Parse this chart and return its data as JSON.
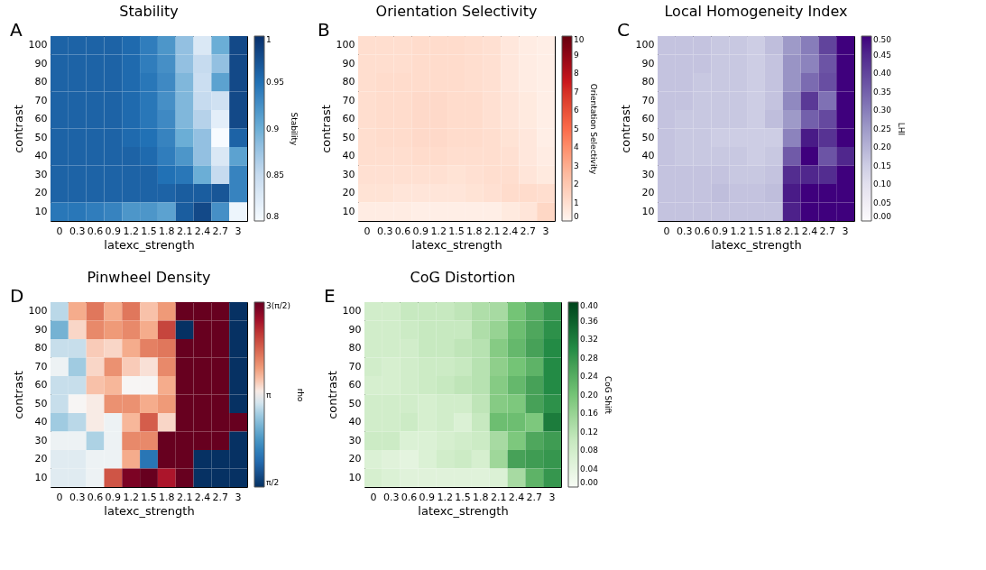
{
  "chart_data": [
    {
      "type": "heatmap",
      "title": "Stability",
      "xlabel": "latexc_strength",
      "ylabel": "contrast",
      "clabel": "Stability",
      "annotations": [
        "A"
      ],
      "categories": [
        "0",
        "0.3",
        "0.6",
        "0.9",
        "1.2",
        "1.5",
        "1.8",
        "2.1",
        "2.4",
        "2.7",
        "3"
      ],
      "y_categories": [
        "100",
        "90",
        "80",
        "70",
        "60",
        "50",
        "40",
        "30",
        "20",
        "10"
      ],
      "colors": [
        "#f7fbff",
        "#c6dbef",
        "#6baed6",
        "#2171b5",
        "#08306b"
      ],
      "clim": [
        0.8,
        1
      ],
      "cticks": [
        0.8,
        0.85,
        0.9,
        0.95,
        1
      ],
      "cells": [
        [
          0.96,
          0.96,
          0.96,
          0.96,
          0.955,
          0.94,
          0.92,
          0.88,
          0.83,
          0.9,
          0.98
        ],
        [
          0.96,
          0.96,
          0.96,
          0.96,
          0.955,
          0.94,
          0.925,
          0.88,
          0.85,
          0.88,
          0.98
        ],
        [
          0.96,
          0.96,
          0.96,
          0.96,
          0.955,
          0.945,
          0.93,
          0.89,
          0.845,
          0.91,
          0.98
        ],
        [
          0.96,
          0.96,
          0.96,
          0.96,
          0.955,
          0.945,
          0.925,
          0.89,
          0.85,
          0.84,
          0.98
        ],
        [
          0.96,
          0.96,
          0.96,
          0.96,
          0.955,
          0.945,
          0.93,
          0.89,
          0.86,
          0.82,
          0.98
        ],
        [
          0.96,
          0.96,
          0.96,
          0.96,
          0.955,
          0.95,
          0.935,
          0.9,
          0.88,
          0.8,
          0.96
        ],
        [
          0.96,
          0.96,
          0.96,
          0.96,
          0.96,
          0.955,
          0.94,
          0.92,
          0.88,
          0.83,
          0.91
        ],
        [
          0.96,
          0.96,
          0.96,
          0.96,
          0.96,
          0.96,
          0.95,
          0.945,
          0.9,
          0.85,
          0.935
        ],
        [
          0.96,
          0.96,
          0.96,
          0.96,
          0.96,
          0.96,
          0.96,
          0.965,
          0.965,
          0.97,
          0.935
        ],
        [
          0.945,
          0.945,
          0.94,
          0.935,
          0.92,
          0.92,
          0.91,
          0.965,
          0.98,
          0.925,
          0.81
        ]
      ]
    },
    {
      "type": "heatmap",
      "title": "Orientation Selectivity",
      "xlabel": "latexc_strength",
      "ylabel": "contrast",
      "clabel": "Orientation Selectivity",
      "annotations": [
        "B"
      ],
      "categories": [
        "0",
        "0.3",
        "0.6",
        "0.9",
        "1.2",
        "1.5",
        "1.8",
        "2.1",
        "2.4",
        "2.7",
        "3"
      ],
      "y_categories": [
        "100",
        "90",
        "80",
        "70",
        "60",
        "50",
        "40",
        "30",
        "20",
        "10"
      ],
      "colors": [
        "#fff5f0",
        "#fcbba1",
        "#fb6a4a",
        "#cb181d",
        "#67000d"
      ],
      "clim": [
        0,
        10
      ],
      "cticks": [
        0,
        1,
        2,
        3,
        4,
        5,
        6,
        7,
        8,
        9,
        10
      ],
      "cells": [
        [
          1.0,
          1.0,
          1.0,
          1.1,
          1.1,
          1.1,
          1.0,
          0.9,
          0.6,
          0.4,
          0.3
        ],
        [
          1.0,
          1.0,
          1.0,
          1.1,
          1.1,
          1.1,
          1.0,
          0.9,
          0.6,
          0.4,
          0.3
        ],
        [
          1.0,
          1.1,
          1.1,
          1.1,
          1.1,
          1.1,
          1.0,
          0.9,
          0.6,
          0.4,
          0.3
        ],
        [
          1.0,
          1.1,
          1.1,
          1.2,
          1.2,
          1.1,
          1.1,
          0.9,
          0.7,
          0.5,
          0.3
        ],
        [
          1.0,
          1.1,
          1.1,
          1.2,
          1.2,
          1.1,
          1.1,
          0.9,
          0.7,
          0.5,
          0.3
        ],
        [
          1.0,
          1.1,
          1.1,
          1.2,
          1.2,
          1.1,
          1.1,
          1.0,
          0.8,
          0.6,
          0.3
        ],
        [
          1.0,
          1.0,
          1.0,
          1.1,
          1.1,
          1.0,
          1.0,
          1.0,
          0.9,
          0.6,
          0.4
        ],
        [
          0.9,
          0.9,
          0.9,
          0.9,
          0.9,
          0.8,
          0.9,
          1.0,
          1.0,
          0.7,
          0.5
        ],
        [
          0.8,
          0.8,
          0.7,
          0.7,
          0.7,
          0.7,
          0.8,
          0.9,
          1.1,
          1.1,
          1.0
        ],
        [
          0.4,
          0.4,
          0.4,
          0.3,
          0.3,
          0.3,
          0.3,
          0.3,
          0.5,
          0.7,
          1.3
        ]
      ]
    },
    {
      "type": "heatmap",
      "title": "Local Homogeneity Index",
      "xlabel": "latexc_strength",
      "ylabel": "contrast",
      "clabel": "LHI",
      "annotations": [
        "C"
      ],
      "categories": [
        "0",
        "0.3",
        "0.6",
        "0.9",
        "1.2",
        "1.5",
        "1.8",
        "2.1",
        "2.4",
        "2.7",
        "3"
      ],
      "y_categories": [
        "100",
        "90",
        "80",
        "70",
        "60",
        "50",
        "40",
        "30",
        "20",
        "10"
      ],
      "colors": [
        "#fcfbfd",
        "#dadaeb",
        "#9e9ac8",
        "#6a51a3",
        "#3f007d"
      ],
      "clim": [
        0,
        0.5
      ],
      "cticks": [
        {
          "value": 0,
          "label": "0.00"
        },
        {
          "value": 0.05,
          "label": "0.05"
        },
        {
          "value": 0.1,
          "label": "0.10"
        },
        {
          "value": 0.15,
          "label": "0.15"
        },
        {
          "value": 0.2,
          "label": "0.20"
        },
        {
          "value": 0.25,
          "label": "0.25"
        },
        {
          "value": 0.3,
          "label": "0.30"
        },
        {
          "value": 0.35,
          "label": "0.35"
        },
        {
          "value": 0.4,
          "label": "0.40"
        },
        {
          "value": 0.45,
          "label": "0.45"
        },
        {
          "value": 0.5,
          "label": "0.50"
        }
      ],
      "cells": [
        [
          0.17,
          0.17,
          0.17,
          0.16,
          0.16,
          0.15,
          0.18,
          0.25,
          0.3,
          0.4,
          0.5
        ],
        [
          0.17,
          0.17,
          0.17,
          0.16,
          0.16,
          0.15,
          0.17,
          0.26,
          0.29,
          0.37,
          0.5
        ],
        [
          0.17,
          0.17,
          0.16,
          0.16,
          0.16,
          0.15,
          0.17,
          0.26,
          0.33,
          0.38,
          0.5
        ],
        [
          0.17,
          0.17,
          0.16,
          0.16,
          0.16,
          0.15,
          0.17,
          0.28,
          0.42,
          0.32,
          0.5
        ],
        [
          0.17,
          0.16,
          0.16,
          0.16,
          0.16,
          0.15,
          0.18,
          0.25,
          0.35,
          0.39,
          0.5
        ],
        [
          0.17,
          0.16,
          0.16,
          0.15,
          0.15,
          0.15,
          0.15,
          0.29,
          0.47,
          0.43,
          0.5
        ],
        [
          0.17,
          0.16,
          0.16,
          0.16,
          0.16,
          0.15,
          0.16,
          0.36,
          0.5,
          0.37,
          0.45
        ],
        [
          0.17,
          0.17,
          0.17,
          0.17,
          0.16,
          0.16,
          0.17,
          0.44,
          0.45,
          0.44,
          0.5
        ],
        [
          0.17,
          0.17,
          0.17,
          0.18,
          0.17,
          0.17,
          0.18,
          0.47,
          0.5,
          0.5,
          0.5
        ],
        [
          0.17,
          0.17,
          0.17,
          0.17,
          0.17,
          0.17,
          0.17,
          0.46,
          0.5,
          0.5,
          0.5
        ]
      ]
    },
    {
      "type": "heatmap",
      "title": "Pinwheel Density",
      "xlabel": "latexc_strength",
      "ylabel": "contrast",
      "clabel": "rho",
      "annotations": [
        "D"
      ],
      "categories": [
        "0",
        "0.3",
        "0.6",
        "0.9",
        "1.2",
        "1.5",
        "1.8",
        "2.1",
        "2.4",
        "2.7",
        "3"
      ],
      "y_categories": [
        "100",
        "90",
        "80",
        "70",
        "60",
        "50",
        "40",
        "30",
        "20",
        "10"
      ],
      "colors": [
        "#053061",
        "#2166ac",
        "#4393c3",
        "#92c5de",
        "#f7f7f7",
        "#f4a582",
        "#d6604d",
        "#b2182b",
        "#67001f"
      ],
      "clim": [
        1.5708,
        4.7124
      ],
      "cticks": [
        {
          "value": 1.5708,
          "label": "π/2"
        },
        {
          "value": 3.1416,
          "label": "π"
        },
        {
          "value": 4.7124,
          "label": "3(π/2)"
        }
      ],
      "cells": [
        [
          2.9,
          3.5,
          3.8,
          3.5,
          3.8,
          3.4,
          3.6,
          4.71,
          4.71,
          4.71,
          1.58
        ],
        [
          2.6,
          3.3,
          3.7,
          3.6,
          3.7,
          3.5,
          4.1,
          1.58,
          4.71,
          4.71,
          1.58
        ],
        [
          2.95,
          2.95,
          3.35,
          3.3,
          3.5,
          3.75,
          3.8,
          4.71,
          4.71,
          4.71,
          1.58
        ],
        [
          3.1,
          2.8,
          3.3,
          3.65,
          3.35,
          3.25,
          3.7,
          4.71,
          4.71,
          4.71,
          1.58
        ],
        [
          2.95,
          2.95,
          3.4,
          3.45,
          3.15,
          3.15,
          3.5,
          4.71,
          4.71,
          4.71,
          1.58
        ],
        [
          2.95,
          3.15,
          3.2,
          3.65,
          3.65,
          3.5,
          3.6,
          4.71,
          4.71,
          4.71,
          1.58
        ],
        [
          2.8,
          2.9,
          3.2,
          3.1,
          3.45,
          3.95,
          3.3,
          4.71,
          4.71,
          4.71,
          4.71
        ],
        [
          3.1,
          3.1,
          2.85,
          3.1,
          3.7,
          3.7,
          4.71,
          4.71,
          4.71,
          4.71,
          1.58
        ],
        [
          3.05,
          3.05,
          3.1,
          3.1,
          3.5,
          2.1,
          4.71,
          4.71,
          1.58,
          1.58,
          1.58
        ],
        [
          3.05,
          3.05,
          3.1,
          4.0,
          4.6,
          4.71,
          4.35,
          4.71,
          1.58,
          1.58,
          1.58
        ]
      ]
    },
    {
      "type": "heatmap",
      "title": "CoG Distortion",
      "xlabel": "latexc_strength",
      "ylabel": "contrast",
      "clabel": "CoG Shift",
      "annotations": [
        "E"
      ],
      "categories": [
        "0",
        "0.3",
        "0.6",
        "0.9",
        "1.2",
        "1.5",
        "1.8",
        "2.1",
        "2.4",
        "2.7",
        "3"
      ],
      "y_categories": [
        "100",
        "90",
        "80",
        "70",
        "60",
        "50",
        "40",
        "30",
        "20",
        "10"
      ],
      "colors": [
        "#f7fcf5",
        "#c7e9c0",
        "#74c476",
        "#238b45",
        "#00441b"
      ],
      "clim": [
        0,
        0.4
      ],
      "cticks": [
        {
          "value": 0,
          "label": "0.00"
        },
        {
          "value": 0.04,
          "label": "0.04"
        },
        {
          "value": 0.08,
          "label": "0.08"
        },
        {
          "value": 0.12,
          "label": "0.12"
        },
        {
          "value": 0.16,
          "label": "0.16"
        },
        {
          "value": 0.2,
          "label": "0.20"
        },
        {
          "value": 0.24,
          "label": "0.24"
        },
        {
          "value": 0.28,
          "label": "0.28"
        },
        {
          "value": 0.32,
          "label": "0.32"
        },
        {
          "value": 0.36,
          "label": "0.36"
        },
        {
          "value": 0.4,
          "label": "0.40"
        }
      ],
      "cells": [
        [
          0.08,
          0.08,
          0.1,
          0.1,
          0.1,
          0.11,
          0.13,
          0.14,
          0.2,
          0.24,
          0.28
        ],
        [
          0.08,
          0.08,
          0.09,
          0.1,
          0.1,
          0.1,
          0.13,
          0.16,
          0.21,
          0.25,
          0.29
        ],
        [
          0.08,
          0.08,
          0.08,
          0.1,
          0.1,
          0.11,
          0.12,
          0.18,
          0.22,
          0.26,
          0.3
        ],
        [
          0.08,
          0.07,
          0.08,
          0.09,
          0.09,
          0.1,
          0.12,
          0.17,
          0.2,
          0.23,
          0.3
        ],
        [
          0.07,
          0.07,
          0.08,
          0.09,
          0.1,
          0.11,
          0.12,
          0.18,
          0.22,
          0.26,
          0.3
        ],
        [
          0.08,
          0.08,
          0.08,
          0.07,
          0.08,
          0.08,
          0.11,
          0.18,
          0.19,
          0.26,
          0.29
        ],
        [
          0.08,
          0.08,
          0.09,
          0.07,
          0.08,
          0.06,
          0.1,
          0.21,
          0.21,
          0.19,
          0.32
        ],
        [
          0.09,
          0.09,
          0.06,
          0.06,
          0.07,
          0.08,
          0.09,
          0.14,
          0.19,
          0.25,
          0.27
        ],
        [
          0.06,
          0.05,
          0.04,
          0.06,
          0.08,
          0.09,
          0.07,
          0.15,
          0.26,
          0.27,
          0.28
        ],
        [
          0.07,
          0.06,
          0.05,
          0.05,
          0.05,
          0.05,
          0.05,
          0.06,
          0.14,
          0.23,
          0.28
        ]
      ]
    }
  ]
}
